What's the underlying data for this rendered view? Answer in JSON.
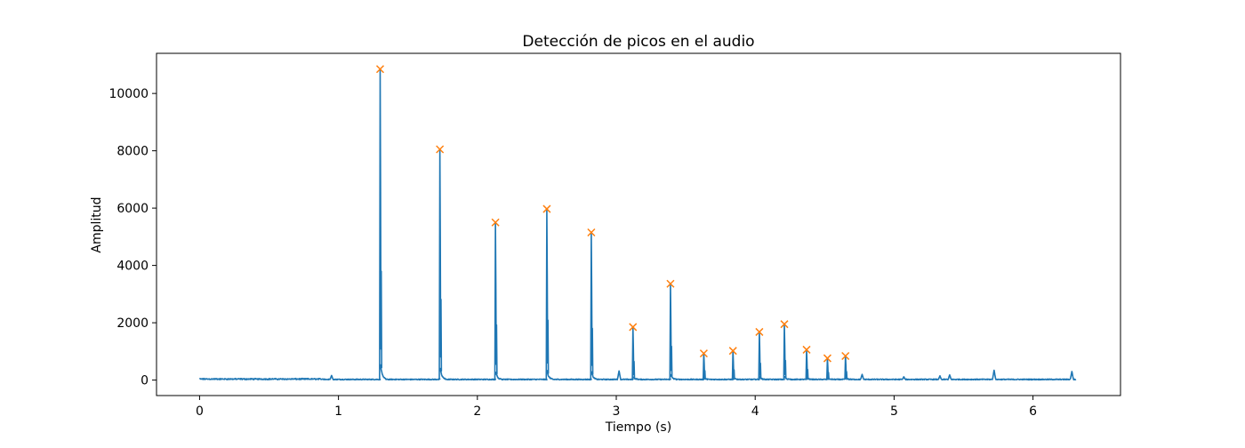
{
  "chart_data": {
    "type": "line",
    "title": "Detección de picos en el audio",
    "xlabel": "Tiempo (s)",
    "ylabel": "Amplitud",
    "xlim": [
      -0.31,
      6.63
    ],
    "ylim": [
      -540,
      11400
    ],
    "x_ticks": [
      0,
      1,
      2,
      3,
      4,
      5,
      6
    ],
    "x_tick_labels": [
      "0",
      "1",
      "2",
      "3",
      "4",
      "5",
      "6"
    ],
    "y_ticks": [
      0,
      2000,
      4000,
      6000,
      8000,
      10000
    ],
    "y_tick_labels": [
      "0",
      "2000",
      "4000",
      "6000",
      "8000",
      "10000"
    ],
    "grid": false,
    "series": [
      {
        "values_description_excluded": true,
        "color": "#1f77b4",
        "peaks": [
          {
            "x": 1.3,
            "y": 10850
          },
          {
            "x": 1.73,
            "y": 8050
          },
          {
            "x": 2.13,
            "y": 5500
          },
          {
            "x": 2.5,
            "y": 5970
          },
          {
            "x": 2.82,
            "y": 5150
          },
          {
            "x": 3.12,
            "y": 1850
          },
          {
            "x": 3.39,
            "y": 3360
          },
          {
            "x": 3.63,
            "y": 930
          },
          {
            "x": 3.84,
            "y": 1020
          },
          {
            "x": 4.03,
            "y": 1680
          },
          {
            "x": 4.21,
            "y": 1950
          },
          {
            "x": 4.37,
            "y": 1060
          },
          {
            "x": 4.52,
            "y": 760
          },
          {
            "x": 4.65,
            "y": 840
          }
        ],
        "minor_bumps": [
          {
            "x": 0.95,
            "y": 160
          },
          {
            "x": 3.02,
            "y": 320
          },
          {
            "x": 4.77,
            "y": 190
          },
          {
            "x": 5.07,
            "y": 110
          },
          {
            "x": 5.33,
            "y": 140
          },
          {
            "x": 5.4,
            "y": 170
          },
          {
            "x": 5.72,
            "y": 340
          },
          {
            "x": 6.28,
            "y": 290
          }
        ],
        "x_end": 6.31
      },
      {
        "color": "#ff7f0e",
        "marker": "x",
        "detected_peaks": [
          {
            "x": 1.3,
            "y": 10850
          },
          {
            "x": 1.73,
            "y": 8050
          },
          {
            "x": 2.13,
            "y": 5500
          },
          {
            "x": 2.5,
            "y": 5970
          },
          {
            "x": 2.82,
            "y": 5150
          },
          {
            "x": 3.12,
            "y": 1850
          },
          {
            "x": 3.39,
            "y": 3360
          },
          {
            "x": 3.63,
            "y": 930
          },
          {
            "x": 3.84,
            "y": 1020
          },
          {
            "x": 4.03,
            "y": 1680
          },
          {
            "x": 4.21,
            "y": 1950
          },
          {
            "x": 4.37,
            "y": 1060
          },
          {
            "x": 4.52,
            "y": 760
          },
          {
            "x": 4.65,
            "y": 840
          }
        ]
      }
    ]
  }
}
